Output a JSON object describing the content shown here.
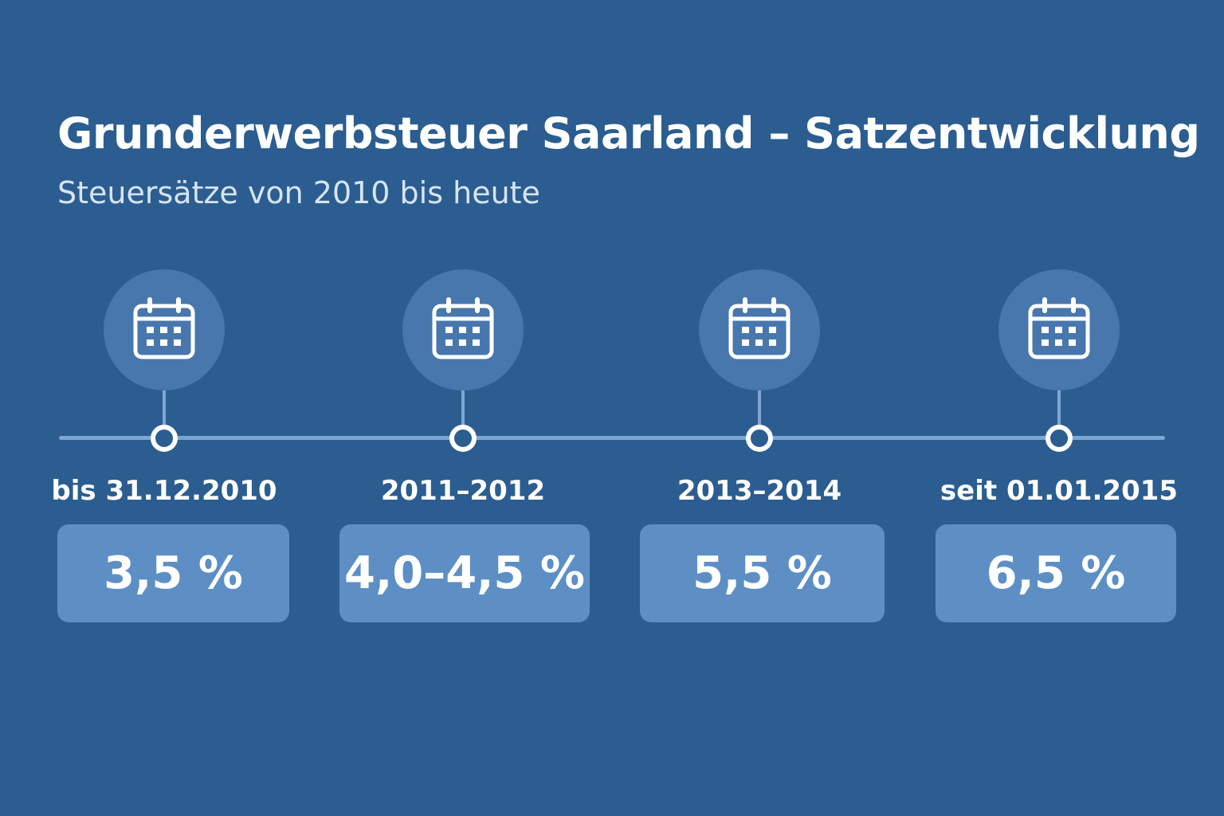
{
  "header": {
    "title": "Grunderwerbsteuer Saarland – Satzentwicklung",
    "subtitle": "Steuersätze von 2010 bis heute"
  },
  "colors": {
    "background": "#2b5d90",
    "icon_circle": "#4877ad",
    "rate_box": "#5d8fc5",
    "timeline": "#7ea6d4"
  },
  "stages": [
    {
      "period": "bis 31.12.2010",
      "rate": "3,5 %",
      "icon": "calendar-icon"
    },
    {
      "period": "2011–2012",
      "rate": "4,0–4,5 %",
      "icon": "calendar-icon"
    },
    {
      "period": "2013–2014",
      "rate": "5,5 %",
      "icon": "calendar-icon"
    },
    {
      "period": "seit 01.01.2015",
      "rate": "6,5 %",
      "icon": "calendar-icon"
    }
  ]
}
